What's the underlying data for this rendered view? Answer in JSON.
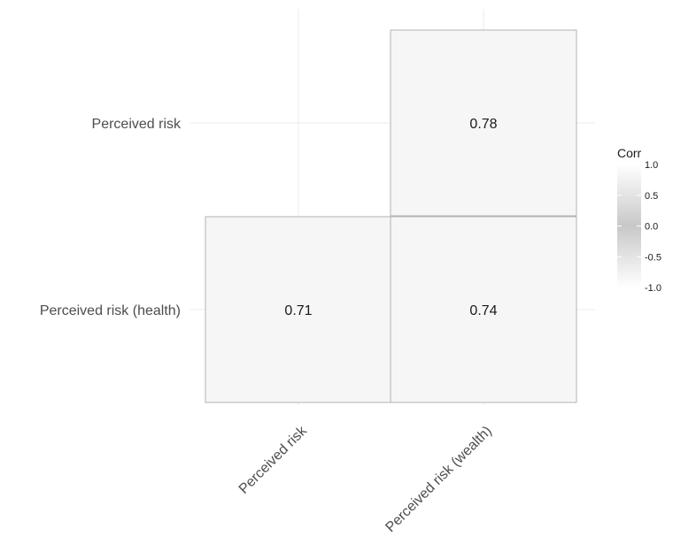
{
  "chart_data": {
    "type": "heatmap",
    "title": "",
    "xlabel": "",
    "ylabel": "",
    "x_categories": [
      "Perceived risk",
      "Perceived risk (wealth)"
    ],
    "y_categories": [
      "Perceived risk (health)",
      "Perceived risk"
    ],
    "cells": [
      {
        "x": "Perceived risk",
        "y": "Perceived risk (health)",
        "value": 0.71,
        "label": "0.71"
      },
      {
        "x": "Perceived risk (wealth)",
        "y": "Perceived risk (health)",
        "value": 0.74,
        "label": "0.74"
      },
      {
        "x": "Perceived risk (wealth)",
        "y": "Perceived risk",
        "value": 0.78,
        "label": "0.78"
      }
    ],
    "legend": {
      "title": "Corr",
      "ticks": [
        "1.0",
        "0.5",
        "0.0",
        "-0.5",
        "-1.0"
      ],
      "range": [
        -1.0,
        1.0
      ],
      "placement": "right"
    },
    "grid": true,
    "colors": {
      "cell_fill": "#f6f6f6",
      "cell_border": "#b3b3b3",
      "grid": "#ebebeb",
      "low": "#ffffff",
      "mid": "#c8c8c8",
      "high": "#ffffff"
    }
  }
}
